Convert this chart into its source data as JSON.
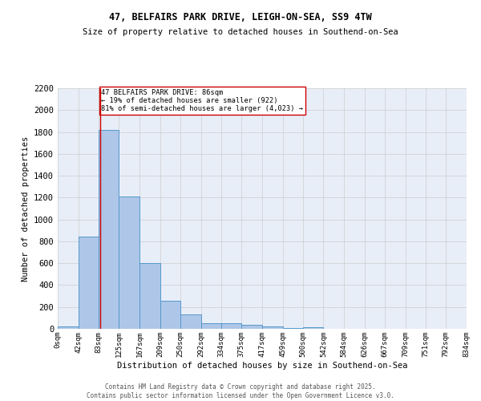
{
  "title1": "47, BELFAIRS PARK DRIVE, LEIGH-ON-SEA, SS9 4TW",
  "title2": "Size of property relative to detached houses in Southend-on-Sea",
  "xlabel": "Distribution of detached houses by size in Southend-on-Sea",
  "ylabel": "Number of detached properties",
  "bin_labels": [
    "0sqm",
    "42sqm",
    "83sqm",
    "125sqm",
    "167sqm",
    "209sqm",
    "250sqm",
    "292sqm",
    "334sqm",
    "375sqm",
    "417sqm",
    "459sqm",
    "500sqm",
    "542sqm",
    "584sqm",
    "626sqm",
    "667sqm",
    "709sqm",
    "751sqm",
    "792sqm",
    "834sqm"
  ],
  "bin_edges": [
    0,
    42,
    83,
    125,
    167,
    209,
    250,
    292,
    334,
    375,
    417,
    459,
    500,
    542,
    584,
    626,
    667,
    709,
    751,
    792,
    834
  ],
  "bar_heights": [
    20,
    840,
    1820,
    1210,
    600,
    255,
    130,
    50,
    50,
    35,
    20,
    5,
    15,
    0,
    0,
    0,
    0,
    0,
    0,
    0
  ],
  "bar_color": "#aec6e8",
  "bar_edge_color": "#5599cc",
  "grid_color": "#cccccc",
  "bg_color": "#e8eef8",
  "property_line_x": 86,
  "property_line_color": "#cc0000",
  "annotation_text": "47 BELFAIRS PARK DRIVE: 86sqm\n← 19% of detached houses are smaller (922)\n81% of semi-detached houses are larger (4,023) →",
  "annotation_box_color": "#cc0000",
  "ylim": [
    0,
    2200
  ],
  "yticks": [
    0,
    200,
    400,
    600,
    800,
    1000,
    1200,
    1400,
    1600,
    1800,
    2000,
    2200
  ],
  "footnote1": "Contains HM Land Registry data © Crown copyright and database right 2025.",
  "footnote2": "Contains public sector information licensed under the Open Government Licence v3.0."
}
